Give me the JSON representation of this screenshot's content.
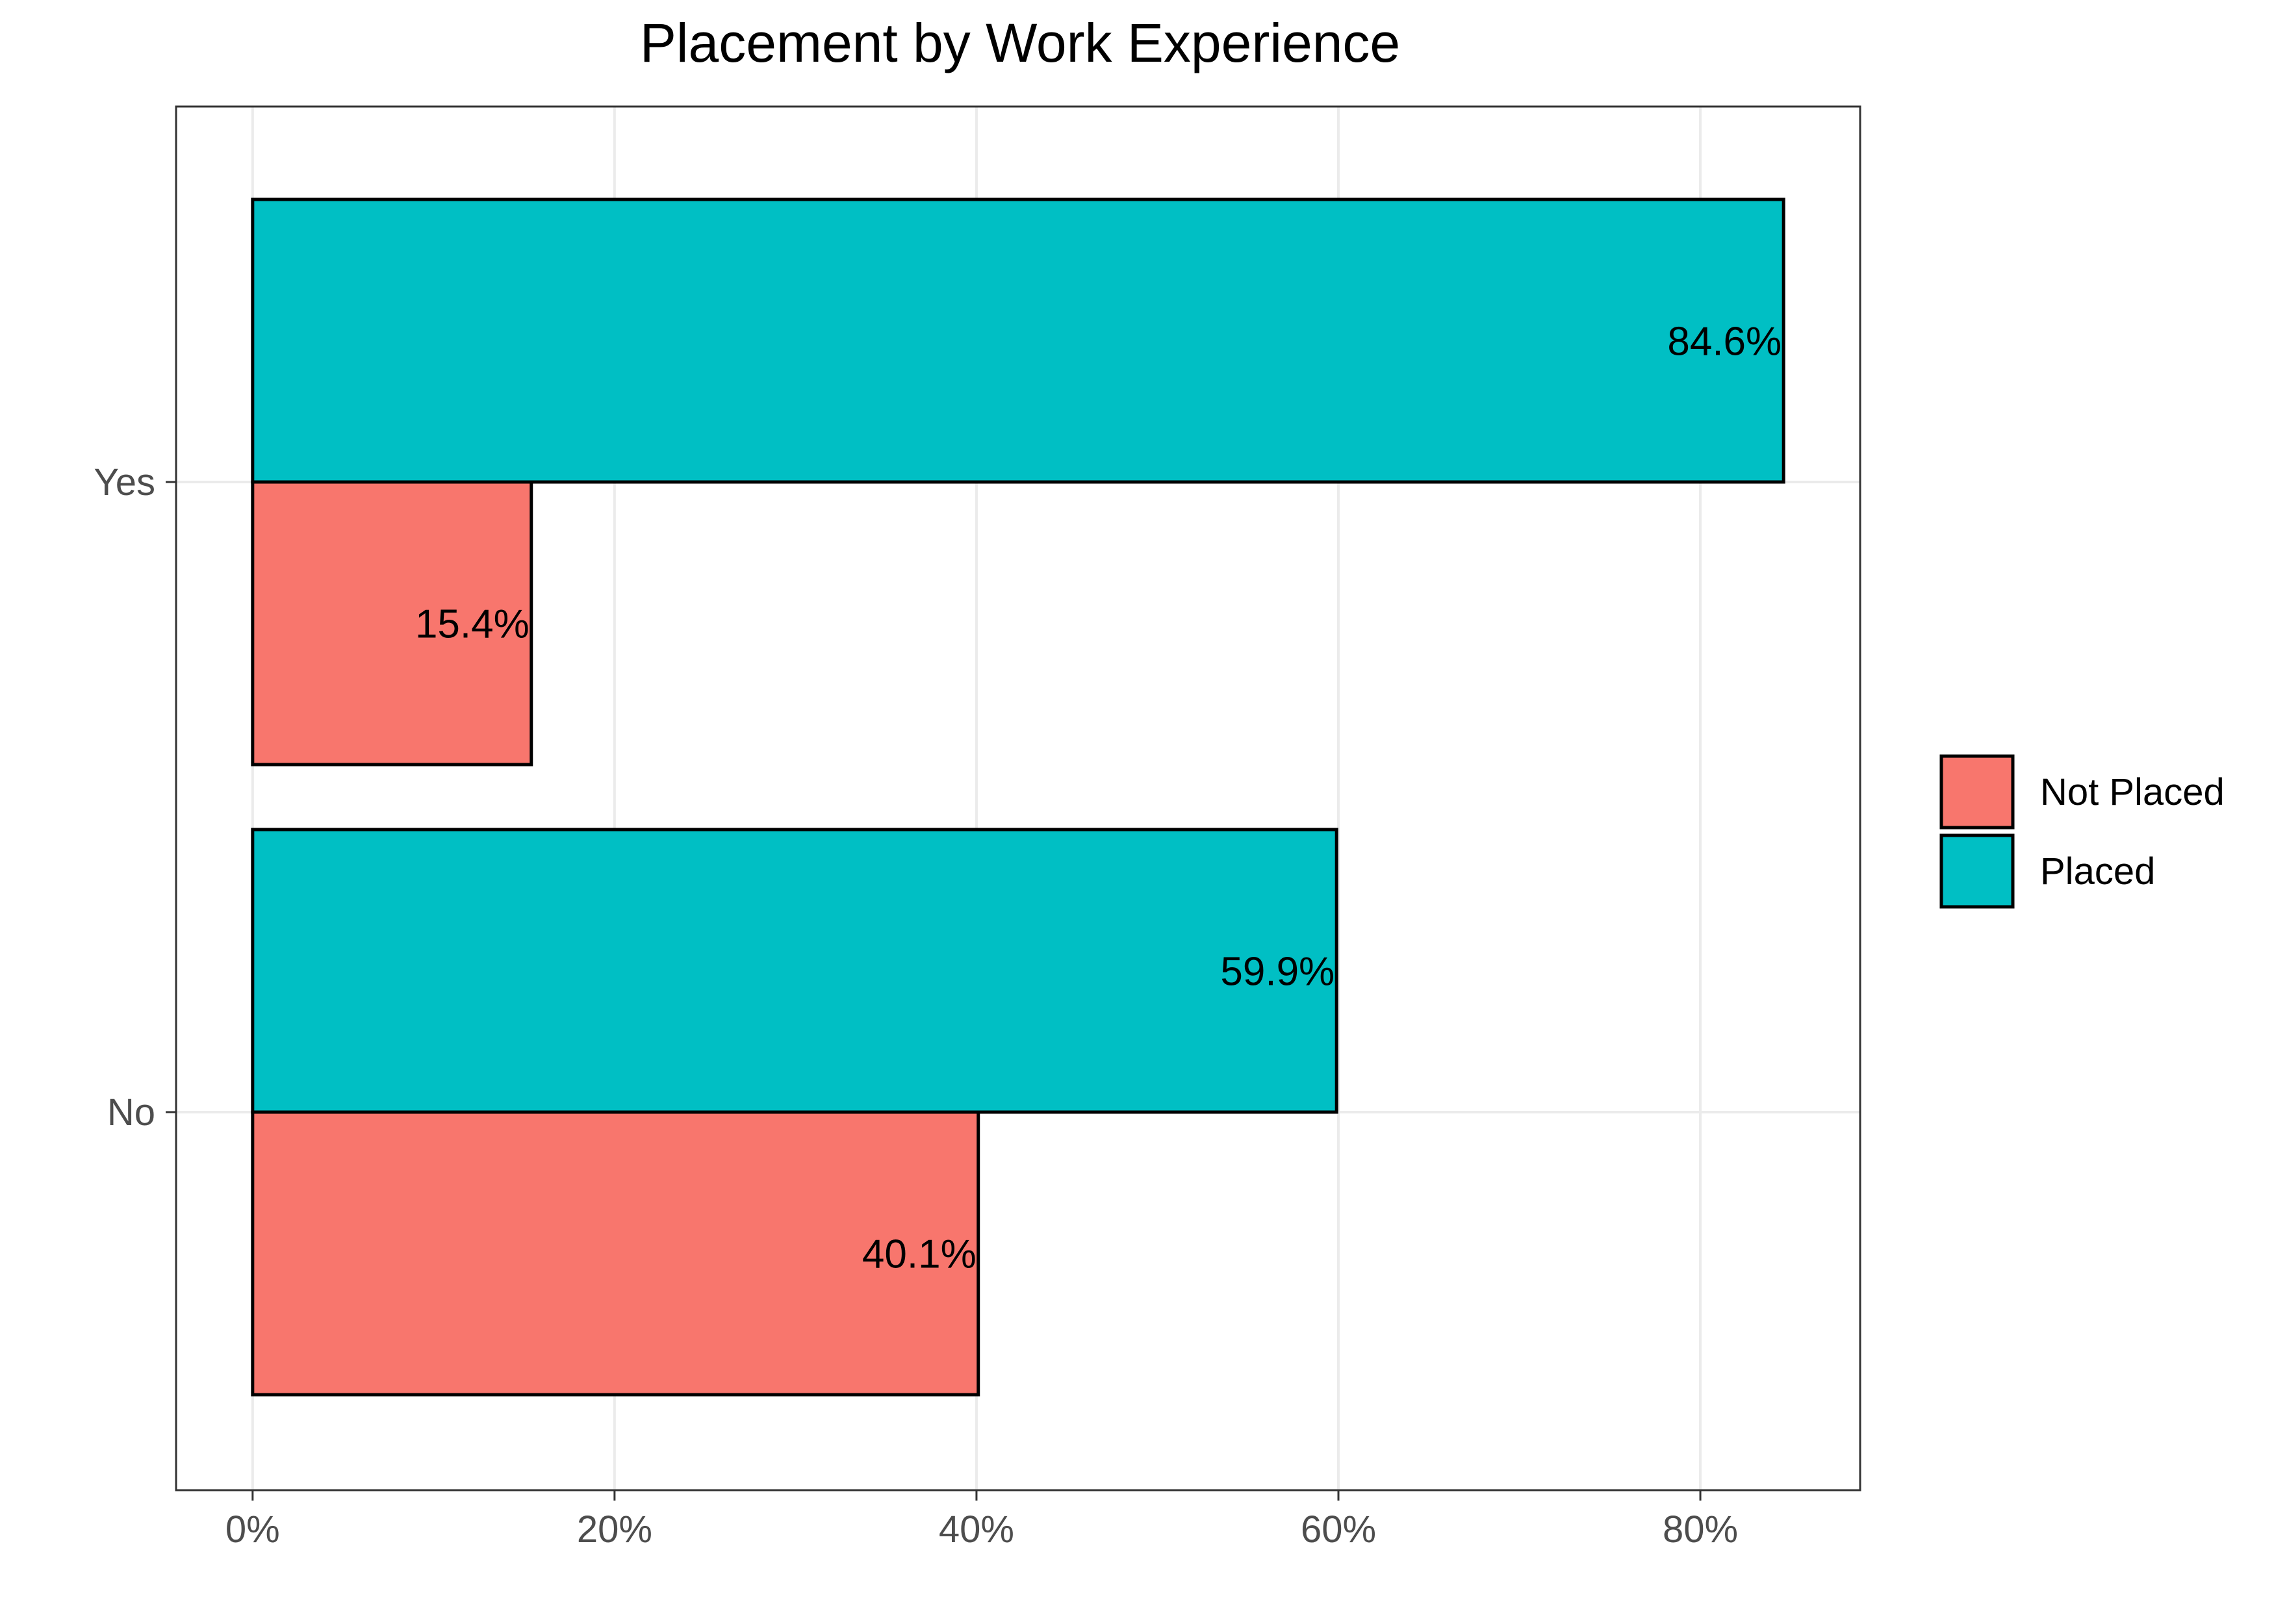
{
  "chart_data": {
    "type": "bar",
    "orientation": "horizontal",
    "title": "Placement by Work Experience",
    "xlabel": "",
    "ylabel": "",
    "categories": [
      "No",
      "Yes"
    ],
    "series": [
      {
        "name": "Not Placed",
        "color": "#F8766D",
        "values": [
          40.1,
          15.4
        ],
        "labels": [
          "40.1%",
          "15.4%"
        ]
      },
      {
        "name": "Placed",
        "color": "#00BFC4",
        "values": [
          59.9,
          84.6
        ],
        "labels": [
          "59.9%",
          "84.6%"
        ]
      }
    ],
    "xlim": [
      -4.23,
      88.83
    ],
    "xticks": [
      0,
      20,
      40,
      60,
      80
    ],
    "xtick_labels": [
      "0%",
      "20%",
      "40%",
      "60%",
      "80%"
    ],
    "grid": true,
    "legend_position": "right",
    "bar_outline_color": "#000000"
  }
}
